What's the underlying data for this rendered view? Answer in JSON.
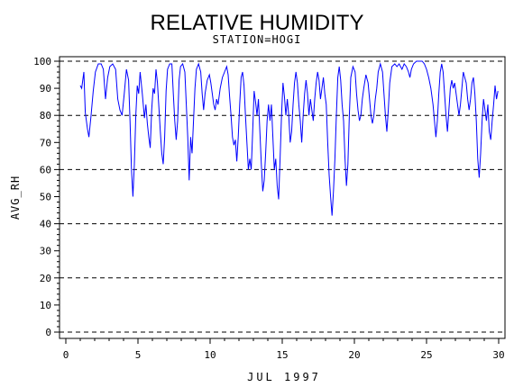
{
  "chart_data": {
    "type": "line",
    "title": "RELATIVE HUMIDITY",
    "subtitle": "STATION=HOGI",
    "xlabel": "JUL 1997",
    "ylabel": "AVG_RH",
    "xlim": [
      0,
      30
    ],
    "ylim": [
      0,
      100
    ],
    "x_ticks": [
      0,
      5,
      10,
      15,
      20,
      25,
      30
    ],
    "x_tick_labels": [
      "0",
      "5",
      "10",
      "15",
      "20",
      "25",
      "30"
    ],
    "y_ticks": [
      0,
      10,
      20,
      30,
      40,
      50,
      60,
      70,
      80,
      90,
      100
    ],
    "y_tick_labels": [
      "0",
      "10",
      "20",
      "30",
      "40",
      "50",
      "60",
      "70",
      "80",
      "90",
      "100"
    ],
    "reference_lines_y": [
      0,
      20,
      40,
      60,
      80,
      100
    ],
    "series_color": "#0000ff",
    "series": [
      {
        "points": [
          [
            1.0,
            91
          ],
          [
            1.1,
            90
          ],
          [
            1.25,
            96
          ],
          [
            1.35,
            81
          ],
          [
            1.5,
            75
          ],
          [
            1.6,
            72
          ],
          [
            1.75,
            80
          ],
          [
            1.9,
            89
          ],
          [
            2.05,
            96
          ],
          [
            2.25,
            99
          ],
          [
            2.45,
            99
          ],
          [
            2.6,
            97
          ],
          [
            2.75,
            86
          ],
          [
            2.9,
            94
          ],
          [
            3.05,
            98
          ],
          [
            3.25,
            99
          ],
          [
            3.45,
            97
          ],
          [
            3.6,
            86
          ],
          [
            3.75,
            82
          ],
          [
            3.9,
            80
          ],
          [
            4.05,
            88
          ],
          [
            4.2,
            97
          ],
          [
            4.35,
            93
          ],
          [
            4.45,
            78
          ],
          [
            4.55,
            60
          ],
          [
            4.65,
            50
          ],
          [
            4.75,
            62
          ],
          [
            4.85,
            80
          ],
          [
            4.95,
            91
          ],
          [
            5.05,
            88
          ],
          [
            5.15,
            96
          ],
          [
            5.3,
            88
          ],
          [
            5.45,
            79
          ],
          [
            5.55,
            84
          ],
          [
            5.65,
            77
          ],
          [
            5.75,
            72
          ],
          [
            5.85,
            68
          ],
          [
            5.95,
            82
          ],
          [
            6.05,
            90
          ],
          [
            6.15,
            88
          ],
          [
            6.25,
            97
          ],
          [
            6.35,
            92
          ],
          [
            6.45,
            83
          ],
          [
            6.55,
            74
          ],
          [
            6.65,
            66
          ],
          [
            6.75,
            62
          ],
          [
            6.85,
            72
          ],
          [
            6.95,
            89
          ],
          [
            7.05,
            97
          ],
          [
            7.2,
            99
          ],
          [
            7.35,
            99
          ],
          [
            7.45,
            88
          ],
          [
            7.55,
            78
          ],
          [
            7.65,
            71
          ],
          [
            7.75,
            78
          ],
          [
            7.85,
            93
          ],
          [
            7.95,
            98
          ],
          [
            8.1,
            99
          ],
          [
            8.25,
            96
          ],
          [
            8.35,
            84
          ],
          [
            8.45,
            72
          ],
          [
            8.55,
            56
          ],
          [
            8.65,
            72
          ],
          [
            8.75,
            66
          ],
          [
            8.85,
            78
          ],
          [
            8.95,
            90
          ],
          [
            9.05,
            97
          ],
          [
            9.2,
            99
          ],
          [
            9.35,
            96
          ],
          [
            9.45,
            88
          ],
          [
            9.55,
            82
          ],
          [
            9.65,
            88
          ],
          [
            9.8,
            93
          ],
          [
            9.95,
            95
          ],
          [
            10.05,
            92
          ],
          [
            10.15,
            88
          ],
          [
            10.25,
            84
          ],
          [
            10.35,
            82
          ],
          [
            10.45,
            86
          ],
          [
            10.55,
            84
          ],
          [
            10.7,
            90
          ],
          [
            10.85,
            94
          ],
          [
            11.0,
            96
          ],
          [
            11.15,
            98
          ],
          [
            11.25,
            95
          ],
          [
            11.35,
            87
          ],
          [
            11.45,
            80
          ],
          [
            11.55,
            72
          ],
          [
            11.65,
            69
          ],
          [
            11.75,
            71
          ],
          [
            11.85,
            63
          ],
          [
            11.95,
            72
          ],
          [
            12.05,
            84
          ],
          [
            12.15,
            94
          ],
          [
            12.25,
            96
          ],
          [
            12.35,
            91
          ],
          [
            12.45,
            80
          ],
          [
            12.55,
            70
          ],
          [
            12.65,
            60
          ],
          [
            12.75,
            64
          ],
          [
            12.85,
            60
          ],
          [
            12.95,
            74
          ],
          [
            13.05,
            89
          ],
          [
            13.15,
            85
          ],
          [
            13.25,
            80
          ],
          [
            13.35,
            86
          ],
          [
            13.45,
            74
          ],
          [
            13.55,
            62
          ],
          [
            13.65,
            52
          ],
          [
            13.75,
            56
          ],
          [
            13.85,
            66
          ],
          [
            13.95,
            78
          ],
          [
            14.05,
            84
          ],
          [
            14.15,
            78
          ],
          [
            14.25,
            84
          ],
          [
            14.35,
            72
          ],
          [
            14.45,
            60
          ],
          [
            14.55,
            64
          ],
          [
            14.65,
            54
          ],
          [
            14.75,
            49
          ],
          [
            14.85,
            64
          ],
          [
            14.95,
            80
          ],
          [
            15.05,
            92
          ],
          [
            15.15,
            87
          ],
          [
            15.25,
            80
          ],
          [
            15.35,
            86
          ],
          [
            15.45,
            80
          ],
          [
            15.55,
            70
          ],
          [
            15.65,
            74
          ],
          [
            15.75,
            84
          ],
          [
            15.85,
            92
          ],
          [
            15.95,
            96
          ],
          [
            16.05,
            92
          ],
          [
            16.15,
            84
          ],
          [
            16.25,
            78
          ],
          [
            16.35,
            70
          ],
          [
            16.45,
            80
          ],
          [
            16.55,
            88
          ],
          [
            16.65,
            93
          ],
          [
            16.75,
            88
          ],
          [
            16.85,
            80
          ],
          [
            16.95,
            86
          ],
          [
            17.05,
            82
          ],
          [
            17.15,
            78
          ],
          [
            17.25,
            86
          ],
          [
            17.35,
            92
          ],
          [
            17.45,
            96
          ],
          [
            17.55,
            93
          ],
          [
            17.65,
            86
          ],
          [
            17.75,
            90
          ],
          [
            17.85,
            94
          ],
          [
            17.95,
            88
          ],
          [
            18.05,
            84
          ],
          [
            18.15,
            70
          ],
          [
            18.25,
            58
          ],
          [
            18.35,
            50
          ],
          [
            18.45,
            43
          ],
          [
            18.55,
            52
          ],
          [
            18.65,
            64
          ],
          [
            18.75,
            80
          ],
          [
            18.85,
            94
          ],
          [
            18.95,
            98
          ],
          [
            19.05,
            93
          ],
          [
            19.15,
            84
          ],
          [
            19.25,
            78
          ],
          [
            19.35,
            64
          ],
          [
            19.45,
            54
          ],
          [
            19.55,
            62
          ],
          [
            19.65,
            80
          ],
          [
            19.75,
            94
          ],
          [
            19.9,
            98
          ],
          [
            20.05,
            96
          ],
          [
            20.15,
            88
          ],
          [
            20.25,
            82
          ],
          [
            20.35,
            78
          ],
          [
            20.45,
            80
          ],
          [
            20.55,
            86
          ],
          [
            20.65,
            90
          ],
          [
            20.8,
            95
          ],
          [
            20.95,
            92
          ],
          [
            21.05,
            86
          ],
          [
            21.15,
            80
          ],
          [
            21.25,
            77
          ],
          [
            21.35,
            80
          ],
          [
            21.45,
            86
          ],
          [
            21.55,
            90
          ],
          [
            21.65,
            96
          ],
          [
            21.8,
            99
          ],
          [
            21.95,
            96
          ],
          [
            22.05,
            88
          ],
          [
            22.15,
            80
          ],
          [
            22.25,
            74
          ],
          [
            22.35,
            82
          ],
          [
            22.45,
            92
          ],
          [
            22.6,
            98
          ],
          [
            22.8,
            99
          ],
          [
            22.95,
            98
          ],
          [
            23.1,
            99
          ],
          [
            23.3,
            97
          ],
          [
            23.45,
            99
          ],
          [
            23.6,
            98
          ],
          [
            23.75,
            96
          ],
          [
            23.85,
            94
          ],
          [
            23.95,
            97
          ],
          [
            24.1,
            99
          ],
          [
            24.3,
            100
          ],
          [
            24.5,
            100
          ],
          [
            24.7,
            100
          ],
          [
            24.85,
            99
          ],
          [
            25.0,
            97
          ],
          [
            25.15,
            94
          ],
          [
            25.3,
            90
          ],
          [
            25.45,
            84
          ],
          [
            25.55,
            78
          ],
          [
            25.65,
            72
          ],
          [
            25.75,
            78
          ],
          [
            25.85,
            88
          ],
          [
            25.95,
            96
          ],
          [
            26.05,
            99
          ],
          [
            26.15,
            96
          ],
          [
            26.25,
            88
          ],
          [
            26.35,
            80
          ],
          [
            26.45,
            74
          ],
          [
            26.55,
            82
          ],
          [
            26.65,
            90
          ],
          [
            26.75,
            93
          ],
          [
            26.85,
            90
          ],
          [
            26.95,
            92
          ],
          [
            27.05,
            88
          ],
          [
            27.15,
            84
          ],
          [
            27.25,
            80
          ],
          [
            27.35,
            84
          ],
          [
            27.45,
            90
          ],
          [
            27.55,
            96
          ],
          [
            27.65,
            94
          ],
          [
            27.75,
            92
          ],
          [
            27.85,
            86
          ],
          [
            27.95,
            82
          ],
          [
            28.05,
            86
          ],
          [
            28.15,
            92
          ],
          [
            28.25,
            94
          ],
          [
            28.35,
            88
          ],
          [
            28.45,
            78
          ],
          [
            28.55,
            64
          ],
          [
            28.65,
            57
          ],
          [
            28.75,
            66
          ],
          [
            28.85,
            78
          ],
          [
            28.95,
            86
          ],
          [
            29.05,
            82
          ],
          [
            29.15,
            78
          ],
          [
            29.25,
            84
          ],
          [
            29.35,
            74
          ],
          [
            29.45,
            71
          ],
          [
            29.55,
            78
          ],
          [
            29.65,
            84
          ],
          [
            29.75,
            91
          ],
          [
            29.85,
            86
          ],
          [
            29.95,
            89
          ]
        ]
      }
    ]
  }
}
